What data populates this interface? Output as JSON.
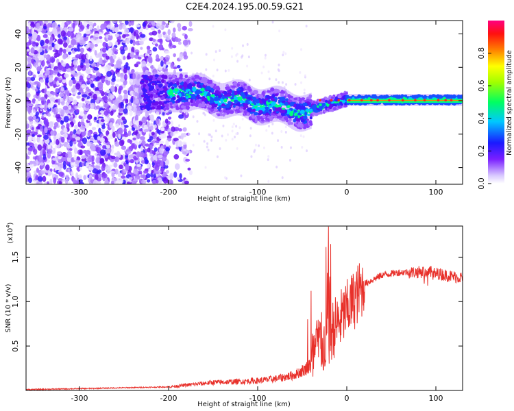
{
  "title": "C2E4.2024.195.00.59.G21",
  "chart_data": [
    {
      "type": "heatmap",
      "xlabel": "Height of straight line (km)",
      "ylabel": "Frequency (Hz)",
      "xlim": [
        -360,
        130
      ],
      "ylim": [
        -50,
        48
      ],
      "xticks": [
        -300,
        -200,
        -100,
        0,
        100
      ],
      "yticks": [
        -40,
        -20,
        0,
        20,
        40
      ],
      "colorbar": {
        "label": "Normalized spectral amplitude",
        "range": [
          0,
          1
        ],
        "ticks": [
          "0.0",
          "0.2",
          "0.4",
          "0.6",
          "0.8"
        ],
        "tick_values": [
          0,
          0.2,
          0.4,
          0.6,
          0.8
        ]
      },
      "description_points": [
        {
          "x": -360,
          "amp": 0.35
        },
        {
          "x": -190,
          "amp": 0.35
        },
        {
          "x": -100,
          "amp": 0.5
        },
        {
          "x": -40,
          "amp": 0.6
        },
        {
          "x": 0,
          "amp": 0.75
        },
        {
          "x": 130,
          "amp": 0.85
        }
      ]
    },
    {
      "type": "line",
      "xlabel": "Height of straight line (km)",
      "ylabel": "SNR (10 * v/v)",
      "scale_note": "(x10",
      "scale_exp": "4",
      "scale_close": ")",
      "xlim": [
        -360,
        130
      ],
      "ylim": [
        0,
        1.85
      ],
      "xticks": [
        -300,
        -200,
        -100,
        0,
        100
      ],
      "yticks": [
        "0.5",
        "1.0",
        "1.5"
      ],
      "ytick_values": [
        0.5,
        1.0,
        1.5
      ],
      "series_color": "#e8302a",
      "series": [
        {
          "x": [
            -360,
            -300,
            -250,
            -200,
            -180,
            -150,
            -120,
            -100,
            -80,
            -60,
            -50,
            -40,
            -35,
            -30,
            -25,
            -20,
            -15,
            -10,
            0,
            10,
            20,
            30,
            40,
            60,
            80,
            90,
            100,
            110,
            120,
            130
          ],
          "values": [
            0.01,
            0.02,
            0.03,
            0.04,
            0.06,
            0.09,
            0.1,
            0.11,
            0.13,
            0.17,
            0.22,
            0.28,
            0.45,
            0.55,
            0.5,
            0.62,
            0.7,
            0.75,
            0.9,
            1.05,
            1.2,
            1.25,
            1.3,
            1.33,
            1.33,
            1.34,
            1.32,
            1.3,
            1.28,
            1.27
          ]
        }
      ],
      "spike": {
        "x": -19,
        "value": 1.85
      }
    }
  ]
}
